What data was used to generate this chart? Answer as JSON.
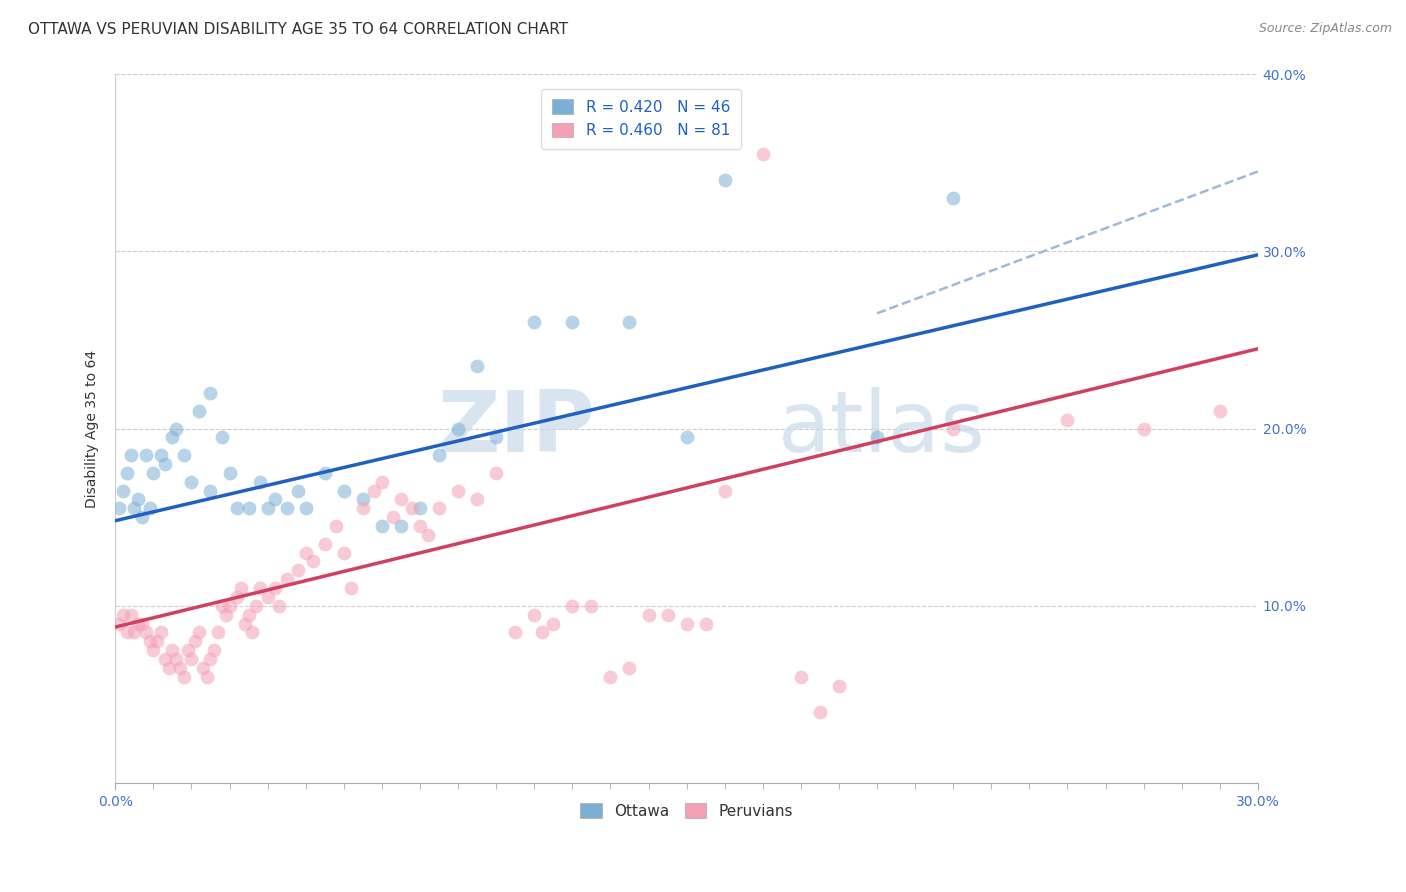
{
  "title": "OTTAWA VS PERUVIAN DISABILITY AGE 35 TO 64 CORRELATION CHART",
  "source": "Source: ZipAtlas.com",
  "ylabel": "Disability Age 35 to 64",
  "xlim": [
    0.0,
    0.3
  ],
  "ylim": [
    0.0,
    0.4
  ],
  "yticks": [
    0.0,
    0.1,
    0.2,
    0.3,
    0.4
  ],
  "ytick_labels_right": [
    "",
    "10.0%",
    "20.0%",
    "30.0%",
    "40.0%"
  ],
  "x_minor_ticks": [
    0.01,
    0.02,
    0.03,
    0.04,
    0.05,
    0.06,
    0.07,
    0.08,
    0.09,
    0.1,
    0.11,
    0.12,
    0.13,
    0.14,
    0.15,
    0.16,
    0.17,
    0.18,
    0.19,
    0.2,
    0.21,
    0.22,
    0.23,
    0.24,
    0.25,
    0.26,
    0.27,
    0.28,
    0.29,
    0.3
  ],
  "ottawa_color": "#7bafd4",
  "peruvian_color": "#f4a0b5",
  "ottawa_line_color": "#2060c0",
  "peruvian_line_color": "#d04060",
  "dashed_line_color": "#a0b8d8",
  "R_ottawa": 0.42,
  "N_ottawa": 46,
  "R_peruvian": 0.46,
  "N_peruvian": 81,
  "background_color": "#ffffff",
  "grid_color": "#cccccc",
  "watermark_text": "ZIP",
  "watermark_text2": "atlas",
  "ottawa_points": [
    [
      0.001,
      0.155
    ],
    [
      0.002,
      0.165
    ],
    [
      0.003,
      0.175
    ],
    [
      0.004,
      0.185
    ],
    [
      0.005,
      0.155
    ],
    [
      0.006,
      0.16
    ],
    [
      0.007,
      0.15
    ],
    [
      0.008,
      0.185
    ],
    [
      0.009,
      0.155
    ],
    [
      0.01,
      0.175
    ],
    [
      0.012,
      0.185
    ],
    [
      0.013,
      0.18
    ],
    [
      0.015,
      0.195
    ],
    [
      0.016,
      0.2
    ],
    [
      0.018,
      0.185
    ],
    [
      0.02,
      0.17
    ],
    [
      0.022,
      0.21
    ],
    [
      0.025,
      0.165
    ],
    [
      0.025,
      0.22
    ],
    [
      0.028,
      0.195
    ],
    [
      0.03,
      0.175
    ],
    [
      0.032,
      0.155
    ],
    [
      0.035,
      0.155
    ],
    [
      0.038,
      0.17
    ],
    [
      0.04,
      0.155
    ],
    [
      0.042,
      0.16
    ],
    [
      0.045,
      0.155
    ],
    [
      0.048,
      0.165
    ],
    [
      0.05,
      0.155
    ],
    [
      0.055,
      0.175
    ],
    [
      0.06,
      0.165
    ],
    [
      0.065,
      0.16
    ],
    [
      0.07,
      0.145
    ],
    [
      0.075,
      0.145
    ],
    [
      0.08,
      0.155
    ],
    [
      0.085,
      0.185
    ],
    [
      0.09,
      0.2
    ],
    [
      0.095,
      0.235
    ],
    [
      0.1,
      0.195
    ],
    [
      0.11,
      0.26
    ],
    [
      0.12,
      0.26
    ],
    [
      0.135,
      0.26
    ],
    [
      0.15,
      0.195
    ],
    [
      0.16,
      0.34
    ],
    [
      0.2,
      0.195
    ],
    [
      0.22,
      0.33
    ]
  ],
  "peruvian_points": [
    [
      0.001,
      0.09
    ],
    [
      0.002,
      0.095
    ],
    [
      0.003,
      0.085
    ],
    [
      0.004,
      0.095
    ],
    [
      0.005,
      0.085
    ],
    [
      0.006,
      0.09
    ],
    [
      0.007,
      0.09
    ],
    [
      0.008,
      0.085
    ],
    [
      0.009,
      0.08
    ],
    [
      0.01,
      0.075
    ],
    [
      0.011,
      0.08
    ],
    [
      0.012,
      0.085
    ],
    [
      0.013,
      0.07
    ],
    [
      0.014,
      0.065
    ],
    [
      0.015,
      0.075
    ],
    [
      0.016,
      0.07
    ],
    [
      0.017,
      0.065
    ],
    [
      0.018,
      0.06
    ],
    [
      0.019,
      0.075
    ],
    [
      0.02,
      0.07
    ],
    [
      0.021,
      0.08
    ],
    [
      0.022,
      0.085
    ],
    [
      0.023,
      0.065
    ],
    [
      0.024,
      0.06
    ],
    [
      0.025,
      0.07
    ],
    [
      0.026,
      0.075
    ],
    [
      0.027,
      0.085
    ],
    [
      0.028,
      0.1
    ],
    [
      0.029,
      0.095
    ],
    [
      0.03,
      0.1
    ],
    [
      0.032,
      0.105
    ],
    [
      0.033,
      0.11
    ],
    [
      0.034,
      0.09
    ],
    [
      0.035,
      0.095
    ],
    [
      0.036,
      0.085
    ],
    [
      0.037,
      0.1
    ],
    [
      0.038,
      0.11
    ],
    [
      0.04,
      0.105
    ],
    [
      0.042,
      0.11
    ],
    [
      0.043,
      0.1
    ],
    [
      0.045,
      0.115
    ],
    [
      0.048,
      0.12
    ],
    [
      0.05,
      0.13
    ],
    [
      0.052,
      0.125
    ],
    [
      0.055,
      0.135
    ],
    [
      0.058,
      0.145
    ],
    [
      0.06,
      0.13
    ],
    [
      0.062,
      0.11
    ],
    [
      0.065,
      0.155
    ],
    [
      0.068,
      0.165
    ],
    [
      0.07,
      0.17
    ],
    [
      0.073,
      0.15
    ],
    [
      0.075,
      0.16
    ],
    [
      0.078,
      0.155
    ],
    [
      0.08,
      0.145
    ],
    [
      0.082,
      0.14
    ],
    [
      0.085,
      0.155
    ],
    [
      0.09,
      0.165
    ],
    [
      0.095,
      0.16
    ],
    [
      0.1,
      0.175
    ],
    [
      0.105,
      0.085
    ],
    [
      0.11,
      0.095
    ],
    [
      0.112,
      0.085
    ],
    [
      0.115,
      0.09
    ],
    [
      0.12,
      0.1
    ],
    [
      0.125,
      0.1
    ],
    [
      0.13,
      0.06
    ],
    [
      0.135,
      0.065
    ],
    [
      0.14,
      0.095
    ],
    [
      0.145,
      0.095
    ],
    [
      0.15,
      0.09
    ],
    [
      0.155,
      0.09
    ],
    [
      0.16,
      0.165
    ],
    [
      0.17,
      0.355
    ],
    [
      0.18,
      0.06
    ],
    [
      0.185,
      0.04
    ],
    [
      0.19,
      0.055
    ],
    [
      0.22,
      0.2
    ],
    [
      0.25,
      0.205
    ],
    [
      0.27,
      0.2
    ],
    [
      0.29,
      0.21
    ]
  ],
  "ottawa_line": {
    "x0": 0.0,
    "y0": 0.148,
    "x1": 0.3,
    "y1": 0.298
  },
  "peruvian_line": {
    "x0": 0.0,
    "y0": 0.088,
    "x1": 0.3,
    "y1": 0.245
  },
  "dashed_line": {
    "x0": 0.2,
    "y0": 0.265,
    "x1": 0.3,
    "y1": 0.345
  },
  "title_fontsize": 11,
  "source_fontsize": 9,
  "axis_label_fontsize": 10,
  "tick_fontsize": 10,
  "legend_fontsize": 11,
  "marker_size": 10,
  "marker_alpha": 0.55
}
